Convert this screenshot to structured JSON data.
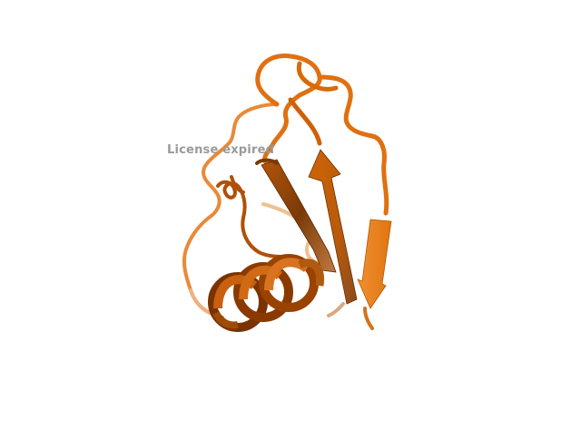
{
  "viewer": {
    "watermark_text": "License expired",
    "background_color": "#ffffff",
    "molecule": {
      "representation": "cartoon",
      "color_main": "#e0700a",
      "color_dark": "#8a3a00",
      "color_light": "#f5b070",
      "secondary_structure": [
        "alpha-helix",
        "beta-strand",
        "beta-strand",
        "beta-strand",
        "loop"
      ]
    }
  }
}
